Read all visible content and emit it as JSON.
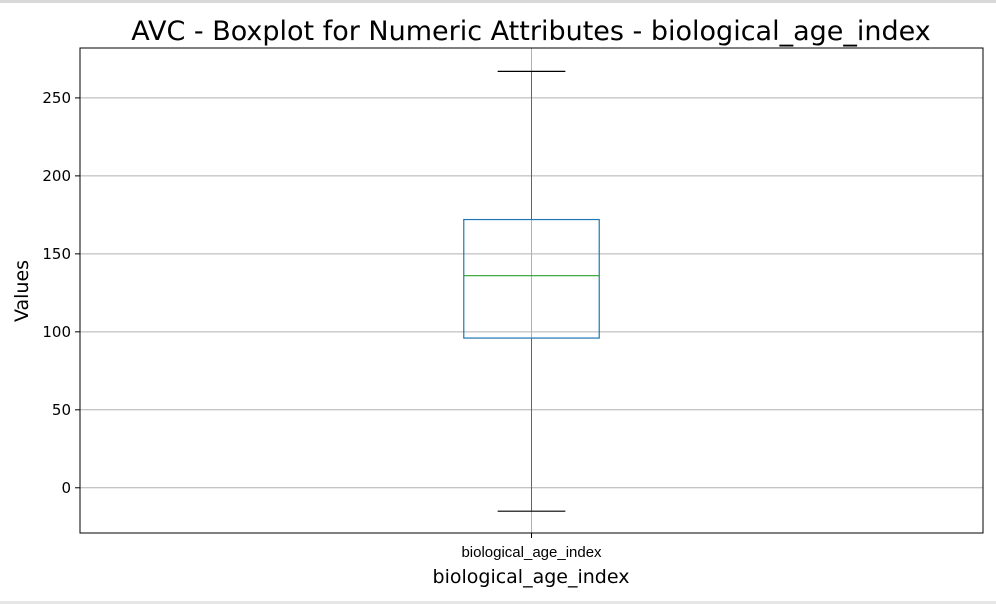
{
  "chart_data": {
    "type": "boxplot",
    "title": "AVC - Boxplot for Numeric Attributes - biological_age_index",
    "xlabel": "biological_age_index",
    "ylabel": "Values",
    "categories": [
      "biological_age_index"
    ],
    "boxes": [
      {
        "category": "biological_age_index",
        "whisker_low": -15,
        "q1": 96,
        "median": 136,
        "q3": 172,
        "whisker_high": 267
      }
    ],
    "yticks": [
      0,
      50,
      100,
      150,
      200,
      250
    ],
    "ylim": [
      -29,
      282
    ],
    "grid": true,
    "colors": {
      "box": "#1f77b4",
      "median": "#2ca02c",
      "caps": "#000000",
      "grid": "#b0b0b0"
    }
  }
}
